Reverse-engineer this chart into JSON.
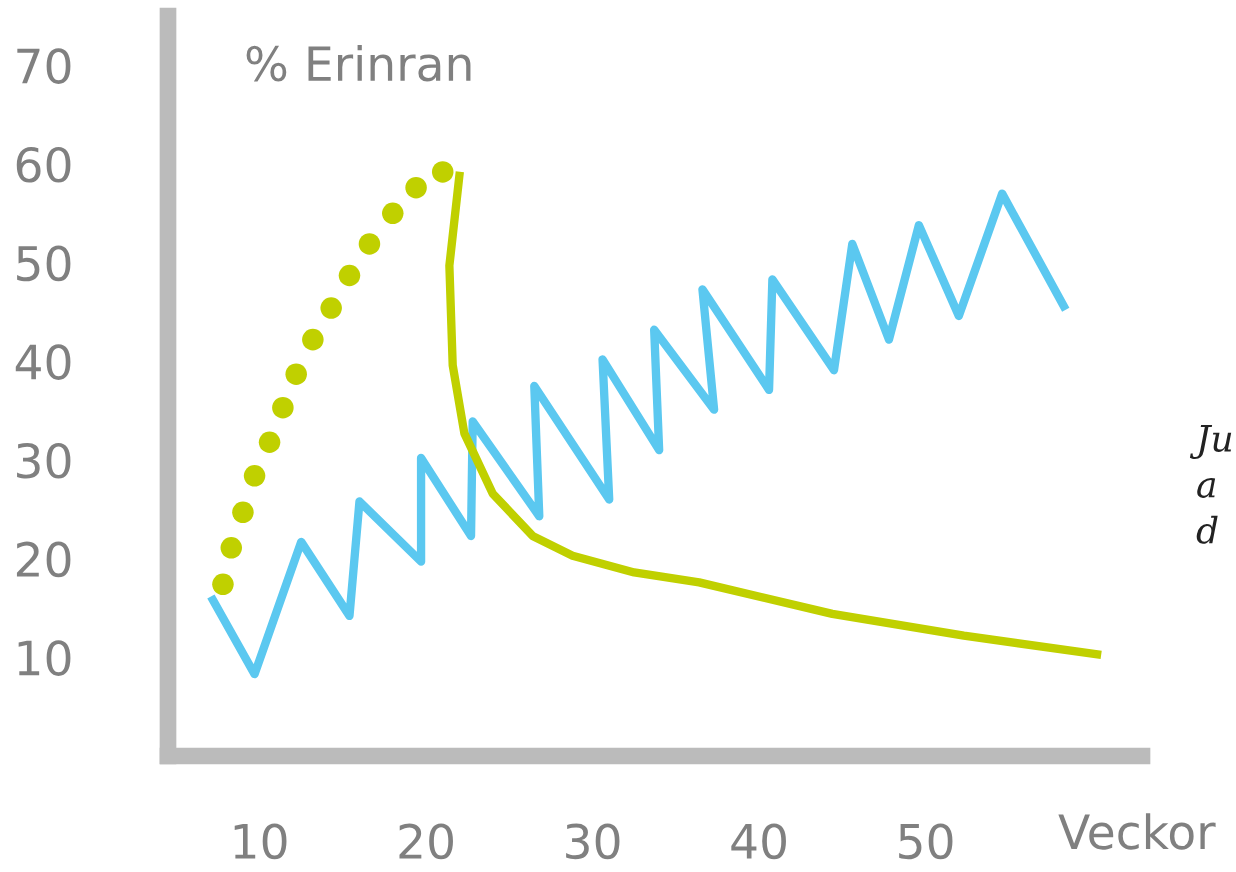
{
  "chart_data": {
    "type": "line",
    "ylabel": "% Erinran",
    "xlabel": "Veckor",
    "xlim": [
      4.5,
      63
    ],
    "ylim": [
      0,
      75
    ],
    "xticks": [
      10,
      20,
      30,
      40,
      50
    ],
    "yticks": [
      10,
      20,
      30,
      40,
      50,
      60,
      70
    ],
    "grid": false,
    "legend": false,
    "annotations": [
      "Ju\na\nd"
    ],
    "series": [
      {
        "color": "#5bc8f0",
        "x": [
          7.2,
          9.7,
          12.5,
          15.4,
          16.0,
          19.7,
          19.7,
          22.7,
          22.8,
          26.8,
          26.5,
          31.0,
          30.6,
          34.0,
          33.7,
          37.3,
          36.6,
          40.6,
          40.8,
          44.5,
          45.6,
          47.8,
          49.6,
          52.0,
          54.6,
          58.3
        ],
        "values": [
          15.8,
          8.3,
          21.7,
          14.2,
          25.8,
          19.7,
          30.2,
          22.3,
          33.9,
          24.3,
          37.5,
          26.0,
          40.2,
          31.0,
          43.2,
          35.1,
          47.3,
          37.1,
          48.3,
          39.1,
          51.9,
          42.2,
          53.8,
          44.6,
          57.0,
          45.6
        ]
      },
      {
        "type": "scatter",
        "color": "#c0d000",
        "marker": "circle",
        "x": [
          7.8,
          8.3,
          9.0,
          9.7,
          10.6,
          11.4,
          12.2,
          13.2,
          14.3,
          15.4,
          16.6,
          18.0,
          19.4,
          21.0
        ],
        "values": [
          17.4,
          21.1,
          24.7,
          28.4,
          31.8,
          35.3,
          38.7,
          42.2,
          45.4,
          48.7,
          51.9,
          55.0,
          57.6,
          59.2
        ]
      },
      {
        "color": "#c0d000",
        "x": [
          22.0,
          21.4,
          21.6,
          22.3,
          24.0,
          26.4,
          28.8,
          32.5,
          36.4,
          44.4,
          52.3,
          60.3
        ],
        "values": [
          58.8,
          49.7,
          39.6,
          32.7,
          26.6,
          22.3,
          20.3,
          18.6,
          17.6,
          14.4,
          12.2,
          10.3
        ]
      }
    ]
  }
}
